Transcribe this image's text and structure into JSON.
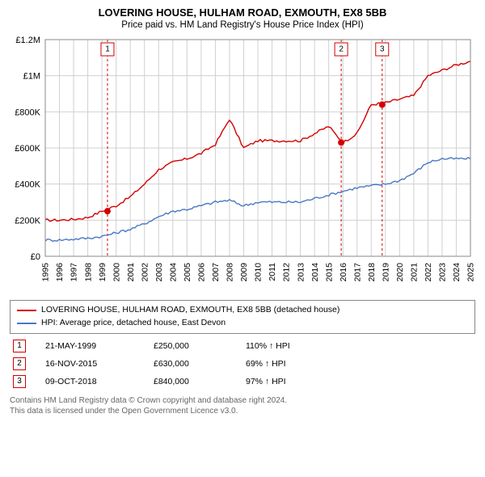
{
  "title": "LOVERING HOUSE, HULHAM ROAD, EXMOUTH, EX8 5BB",
  "subtitle": "Price paid vs. HM Land Registry's House Price Index (HPI)",
  "chart": {
    "type": "line",
    "background_color": "#ffffff",
    "plot_border_color": "#888888",
    "grid_color": "#d0d0d0",
    "ylim": [
      0,
      1200000
    ],
    "ytick_step": 200000,
    "ytick_labels": [
      "£0",
      "£200K",
      "£400K",
      "£600K",
      "£800K",
      "£1M",
      "£1.2M"
    ],
    "x_years": [
      1995,
      1996,
      1997,
      1998,
      1999,
      2000,
      2001,
      2002,
      2003,
      2004,
      2005,
      2006,
      2007,
      2008,
      2009,
      2010,
      2011,
      2012,
      2013,
      2014,
      2015,
      2016,
      2017,
      2018,
      2019,
      2020,
      2021,
      2022,
      2023,
      2024,
      2025
    ],
    "series": [
      {
        "name": "property",
        "label": "LOVERING HOUSE, HULHAM ROAD, EXMOUTH, EX8 5BB (detached house)",
        "color": "#d40000",
        "line_width": 1.4,
        "values_by_year": [
          [
            1995,
            200000
          ],
          [
            1996,
            200000
          ],
          [
            1997,
            205000
          ],
          [
            1998,
            215000
          ],
          [
            1999,
            250000
          ],
          [
            2000,
            280000
          ],
          [
            2001,
            330000
          ],
          [
            2002,
            400000
          ],
          [
            2003,
            480000
          ],
          [
            2004,
            520000
          ],
          [
            2005,
            540000
          ],
          [
            2006,
            570000
          ],
          [
            2007,
            620000
          ],
          [
            2008,
            760000
          ],
          [
            2009,
            600000
          ],
          [
            2010,
            640000
          ],
          [
            2011,
            640000
          ],
          [
            2012,
            640000
          ],
          [
            2013,
            640000
          ],
          [
            2014,
            680000
          ],
          [
            2015,
            720000
          ],
          [
            2016,
            630000
          ],
          [
            2017,
            680000
          ],
          [
            2018,
            840000
          ],
          [
            2019,
            850000
          ],
          [
            2020,
            870000
          ],
          [
            2021,
            890000
          ],
          [
            2022,
            1000000
          ],
          [
            2023,
            1030000
          ],
          [
            2024,
            1060000
          ],
          [
            2025,
            1080000
          ]
        ]
      },
      {
        "name": "hpi",
        "label": "HPI: Average price, detached house, East Devon",
        "color": "#4a78c4",
        "line_width": 1.4,
        "values_by_year": [
          [
            1995,
            90000
          ],
          [
            1996,
            90000
          ],
          [
            1997,
            95000
          ],
          [
            1998,
            100000
          ],
          [
            1999,
            110000
          ],
          [
            2000,
            130000
          ],
          [
            2001,
            150000
          ],
          [
            2002,
            180000
          ],
          [
            2003,
            220000
          ],
          [
            2004,
            250000
          ],
          [
            2005,
            260000
          ],
          [
            2006,
            280000
          ],
          [
            2007,
            300000
          ],
          [
            2008,
            310000
          ],
          [
            2009,
            280000
          ],
          [
            2010,
            300000
          ],
          [
            2011,
            300000
          ],
          [
            2012,
            300000
          ],
          [
            2013,
            300000
          ],
          [
            2014,
            320000
          ],
          [
            2015,
            340000
          ],
          [
            2016,
            360000
          ],
          [
            2017,
            380000
          ],
          [
            2018,
            390000
          ],
          [
            2019,
            400000
          ],
          [
            2020,
            420000
          ],
          [
            2021,
            460000
          ],
          [
            2022,
            520000
          ],
          [
            2023,
            540000
          ],
          [
            2024,
            540000
          ],
          [
            2025,
            540000
          ]
        ]
      }
    ],
    "events": [
      {
        "n": "1",
        "date": "21-MAY-1999",
        "price_label": "£250,000",
        "hpi_label": "110% ↑ HPI",
        "year_frac": 1999.39,
        "price": 250000,
        "marker_color": "#d40000"
      },
      {
        "n": "2",
        "date": "16-NOV-2015",
        "price_label": "£630,000",
        "hpi_label": "69% ↑ HPI",
        "year_frac": 2015.88,
        "price": 630000,
        "marker_color": "#d40000"
      },
      {
        "n": "3",
        "date": "09-OCT-2018",
        "price_label": "£840,000",
        "hpi_label": "97% ↑ HPI",
        "year_frac": 2018.77,
        "price": 840000,
        "marker_color": "#d40000"
      }
    ],
    "event_line_color": "#d40000",
    "event_line_dash": "3,3",
    "dot_radius": 4
  },
  "attribution_line1": "Contains HM Land Registry data © Crown copyright and database right 2024.",
  "attribution_line2": "This data is licensed under the Open Government Licence v3.0."
}
